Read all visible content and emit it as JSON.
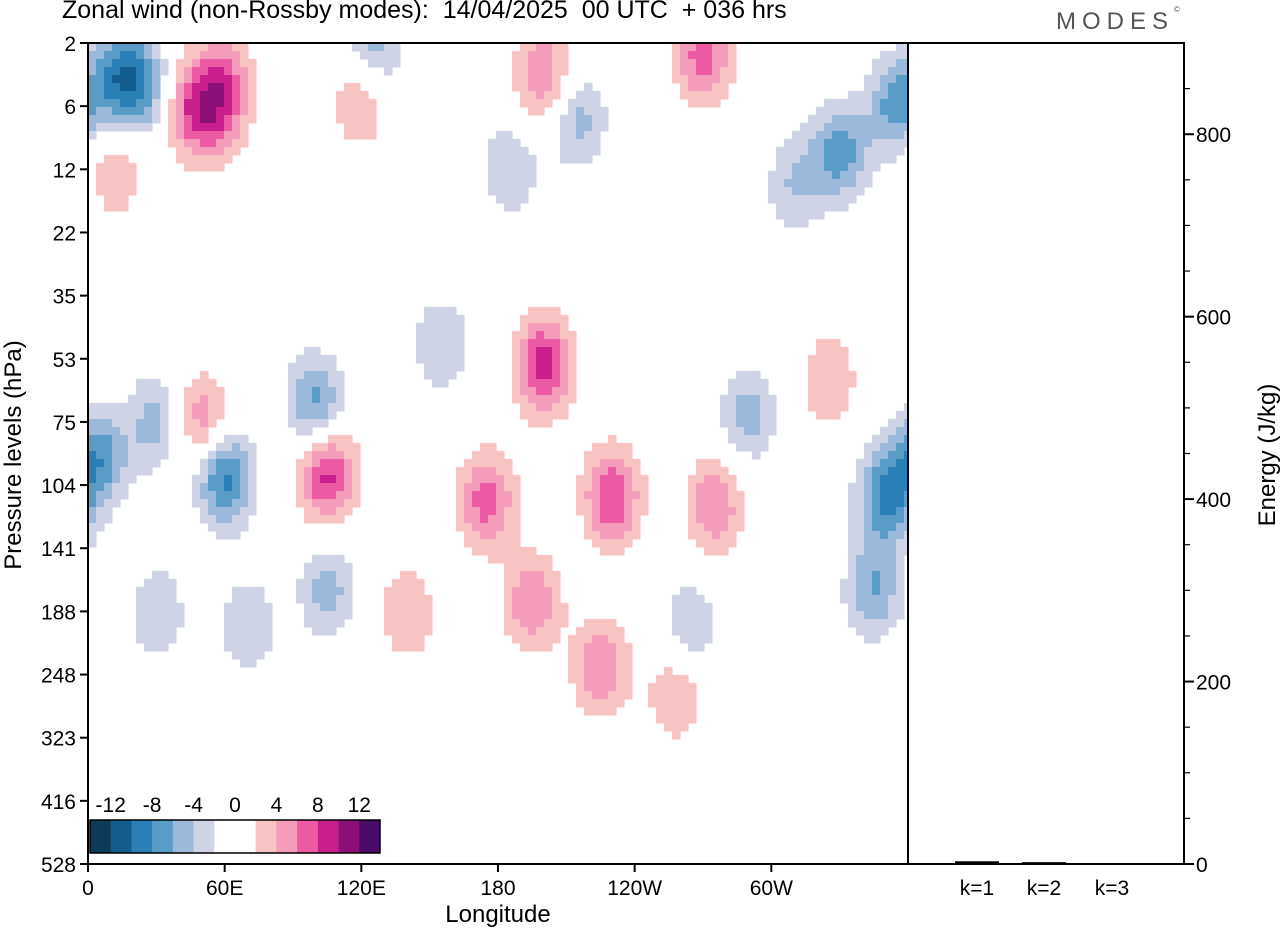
{
  "header": {
    "title": "Zonal wind (non-Rossby modes):  14/04/2025  00 UTC  + 036 hrs",
    "brand": "MODES",
    "brand_mark": "©"
  },
  "chart_data": [
    {
      "type": "heatmap",
      "xlabel": "Longitude",
      "ylabel": "Pressure levels (hPa)",
      "x_ticks": [
        "0",
        "60E",
        "120E",
        "180",
        "120W",
        "60W"
      ],
      "y_ticks": [
        "2",
        "6",
        "12",
        "22",
        "35",
        "53",
        "75",
        "104",
        "141",
        "188",
        "248",
        "323",
        "416",
        "528"
      ],
      "colorbar": {
        "labels": [
          "-12",
          "-8",
          "-4",
          "0",
          "4",
          "8",
          "12"
        ],
        "levels": [
          -14,
          -12,
          -10,
          -8,
          -6,
          -4,
          -2,
          0,
          2,
          4,
          6,
          8,
          10,
          12,
          14
        ],
        "colors": [
          "#0c3b57",
          "#135e8e",
          "#2a7fb6",
          "#5a9cc8",
          "#9bb9da",
          "#cfd3e6",
          "#ffffff",
          "#ffffff",
          "#f8c3c3",
          "#f59cba",
          "#ec5aa4",
          "#c91f8c",
          "#8c0f78",
          "#4a0a67"
        ]
      },
      "blobs": [
        {
          "lon": 15,
          "p": 3.5,
          "v": -8
        },
        {
          "lon": 25,
          "p": 4.5,
          "v": -5
        },
        {
          "lon": 45,
          "p": 6,
          "v": 6
        },
        {
          "lon": 55,
          "p": 7,
          "v": 4
        },
        {
          "lon": 12,
          "p": 12,
          "v": 4
        },
        {
          "lon": 60,
          "p": 4,
          "v": 6
        },
        {
          "lon": 120,
          "p": 5,
          "v": 5
        },
        {
          "lon": 125,
          "p": 2.2,
          "v": -6
        },
        {
          "lon": 200,
          "p": 3.5,
          "v": 6
        },
        {
          "lon": 270,
          "p": 2.5,
          "v": 7
        },
        {
          "lon": 215,
          "p": 7,
          "v": -5
        },
        {
          "lon": 330,
          "p": 10,
          "v": -7
        },
        {
          "lon": 355,
          "p": 6,
          "v": -7
        },
        {
          "lon": 185,
          "p": 12,
          "v": -4
        },
        {
          "lon": 310,
          "p": 14,
          "v": -4
        },
        {
          "lon": 5,
          "p": 90,
          "v": -7
        },
        {
          "lon": 30,
          "p": 75,
          "v": -5
        },
        {
          "lon": 60,
          "p": 100,
          "v": -9
        },
        {
          "lon": 50,
          "p": 75,
          "v": 6
        },
        {
          "lon": 100,
          "p": 68,
          "v": -7
        },
        {
          "lon": 105,
          "p": 98,
          "v": 9
        },
        {
          "lon": 200,
          "p": 55,
          "v": 9
        },
        {
          "lon": 155,
          "p": 48,
          "v": -4
        },
        {
          "lon": 175,
          "p": 112,
          "v": 7
        },
        {
          "lon": 195,
          "p": 180,
          "v": 6
        },
        {
          "lon": 230,
          "p": 110,
          "v": 8
        },
        {
          "lon": 225,
          "p": 240,
          "v": 6
        },
        {
          "lon": 258,
          "p": 270,
          "v": 4
        },
        {
          "lon": 275,
          "p": 115,
          "v": 6
        },
        {
          "lon": 290,
          "p": 72,
          "v": -5
        },
        {
          "lon": 350,
          "p": 110,
          "v": -8
        },
        {
          "lon": 345,
          "p": 170,
          "v": -6
        },
        {
          "lon": 30,
          "p": 190,
          "v": -4
        },
        {
          "lon": 70,
          "p": 200,
          "v": -4
        },
        {
          "lon": 105,
          "p": 170,
          "v": -5
        },
        {
          "lon": 140,
          "p": 190,
          "v": 4
        },
        {
          "lon": 265,
          "p": 200,
          "v": -4
        },
        {
          "lon": 325,
          "p": 60,
          "v": 4
        }
      ]
    },
    {
      "type": "bar",
      "categories": [
        "k=1",
        "k=2",
        "k=3"
      ],
      "values": [
        3,
        2,
        1
      ],
      "ylabel": "Energy (J/kg)",
      "ylim": [
        0,
        900
      ],
      "yticks": [
        0,
        200,
        400,
        600,
        800
      ]
    }
  ]
}
